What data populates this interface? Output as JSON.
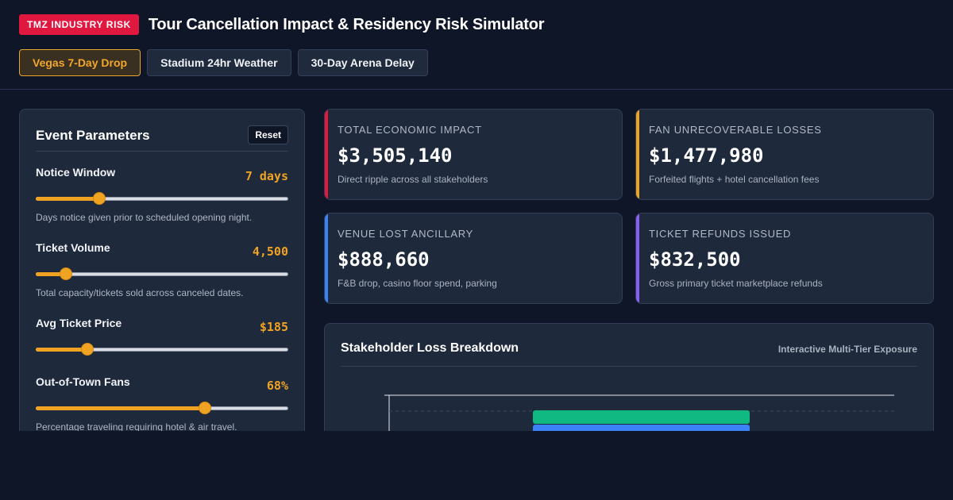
{
  "header": {
    "badge": "TMZ INDUSTRY RISK",
    "title": "Tour Cancellation Impact & Residency Risk Simulator"
  },
  "scenarios": [
    {
      "label": "Vegas 7-Day Drop",
      "active": true
    },
    {
      "label": "Stadium 24hr Weather",
      "active": false
    },
    {
      "label": "30-Day Arena Delay",
      "active": false
    }
  ],
  "panel": {
    "title": "Event Parameters",
    "reset_label": "Reset",
    "params": [
      {
        "label": "Notice Window",
        "value": "7 days",
        "level": 0.24,
        "help": "Days notice given prior to scheduled opening night."
      },
      {
        "label": "Ticket Volume",
        "value": "4,500",
        "level": 0.1,
        "help": "Total capacity/tickets sold across canceled dates."
      },
      {
        "label": "Avg Ticket Price",
        "value": "$185",
        "level": 0.19,
        "help": ""
      },
      {
        "label": "Out-of-Town Fans",
        "value": "68%",
        "level": 0.68,
        "help": "Percentage traveling requiring hotel & air travel."
      }
    ]
  },
  "metrics": [
    {
      "label": "TOTAL ECONOMIC IMPACT",
      "value": "$3,505,140",
      "sub": "Direct ripple across all stakeholders",
      "accent": "#e0173f"
    },
    {
      "label": "FAN UNRECOVERABLE LOSSES",
      "value": "$1,477,980",
      "sub": "Forfeited flights + hotel cancellation fees",
      "accent": "#f0a323"
    },
    {
      "label": "VENUE LOST ANCILLARY",
      "value": "$888,660",
      "sub": "F&B drop, casino floor spend, parking",
      "accent": "#3b82f6"
    },
    {
      "label": "TICKET REFUNDS ISSUED",
      "value": "$832,500",
      "sub": "Gross primary ticket marketplace refunds",
      "accent": "#8b5cf6"
    }
  ],
  "chart": {
    "title": "Stakeholder Loss Breakdown",
    "tag": "Interactive Multi-Tier Exposure",
    "colors": {
      "green": "#10b981",
      "blue": "#3b82f6"
    }
  },
  "colors": {
    "background": "#0e1628",
    "panel": "#1e293b",
    "accent": "#f0a323",
    "badge": "#e0173f"
  }
}
